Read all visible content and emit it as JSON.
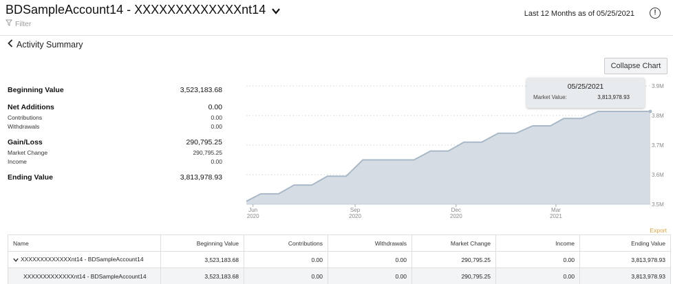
{
  "header": {
    "account_title": "BDSampleAccount14 - XXXXXXXXXXXXXnt14",
    "filter_label": "Filter",
    "period_label": "Last 12 Months as of 05/25/2021",
    "alert_glyph": "!"
  },
  "nav": {
    "back_label": "Activity Summary"
  },
  "chart_controls": {
    "collapse_label": "Collapse Chart"
  },
  "summary": {
    "beginning_value": {
      "label": "Beginning Value",
      "value": "3,523,183.68"
    },
    "net_additions": {
      "label": "Net Additions",
      "value": "0.00"
    },
    "contributions": {
      "label": "Contributions",
      "value": "0.00"
    },
    "withdrawals": {
      "label": "Withdrawals",
      "value": "0.00"
    },
    "gain_loss": {
      "label": "Gain/Loss",
      "value": "290,795.25"
    },
    "market_change": {
      "label": "Market Change",
      "value": "290,795.25"
    },
    "income": {
      "label": "Income",
      "value": "0.00"
    },
    "ending_value": {
      "label": "Ending Value",
      "value": "3,813,978.93"
    }
  },
  "tooltip": {
    "date": "05/25/2021",
    "label": "Market Value:",
    "value": "3,813,978.93"
  },
  "chart_data": {
    "type": "area",
    "x": [
      "2020-05-26",
      "2020-06-08",
      "2020-06-24",
      "2020-07-08",
      "2020-07-24",
      "2020-08-07",
      "2020-08-24",
      "2020-09-08",
      "2020-09-24",
      "2020-10-08",
      "2020-10-24",
      "2020-11-08",
      "2020-11-24",
      "2020-12-08",
      "2020-12-24",
      "2021-01-08",
      "2021-01-24",
      "2021-02-08",
      "2021-02-24",
      "2021-03-08",
      "2021-03-24",
      "2021-04-08",
      "2021-04-24",
      "2021-05-08",
      "2021-05-25"
    ],
    "y": [
      3510000,
      3535000,
      3535000,
      3565000,
      3565000,
      3595000,
      3595000,
      3650000,
      3650000,
      3650000,
      3650000,
      3680000,
      3680000,
      3710000,
      3710000,
      3740000,
      3740000,
      3765000,
      3765000,
      3790000,
      3790000,
      3814000,
      3814000,
      3814000,
      3813978.93
    ],
    "series_name": "Market Value",
    "x_ticks": [
      {
        "date": "2020-06-01",
        "month": "Jun",
        "year": "2020"
      },
      {
        "date": "2020-09-01",
        "month": "Sep",
        "year": "2020"
      },
      {
        "date": "2020-12-01",
        "month": "Dec",
        "year": "2020"
      },
      {
        "date": "2021-03-01",
        "month": "Mar",
        "year": "2021"
      }
    ],
    "y_ticks": [
      3500000,
      3600000,
      3700000,
      3800000,
      3900000
    ],
    "y_tick_labels": [
      "3.5M",
      "3.6M",
      "3.7M",
      "3.8M",
      "3.9M"
    ],
    "ylim": [
      3500000,
      3900000
    ],
    "xlim": [
      "2020-05-26",
      "2021-05-25"
    ],
    "grid": true,
    "fill_color": "#d5dce4",
    "line_color": "#a9b8c7"
  },
  "export_label": "Export",
  "table": {
    "columns": [
      "Name",
      "Beginning Value",
      "Contributions",
      "Withdrawals",
      "Market Change",
      "Income",
      "Ending Value"
    ],
    "rows": [
      {
        "name": "XXXXXXXXXXXXXnt14 - BDSampleAccount14",
        "cells": [
          "3,523,183.68",
          "0.00",
          "0.00",
          "290,795.25",
          "0.00",
          "3,813,978.93"
        ]
      },
      {
        "name": "XXXXXXXXXXXXXnt14 - BDSampleAccount14",
        "cells": [
          "3,523,183.68",
          "0.00",
          "0.00",
          "290,795.25",
          "0.00",
          "3,813,978.93"
        ]
      }
    ]
  }
}
